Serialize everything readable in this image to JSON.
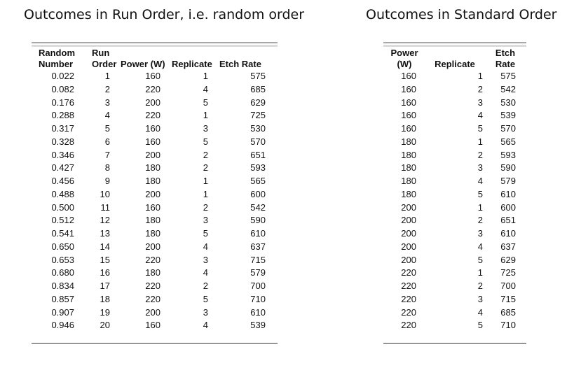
{
  "headings": {
    "left": "Outcomes in Run Order, i.e. random order",
    "right": "Outcomes in Standard Order"
  },
  "run_table": {
    "headers": [
      [
        "Random",
        "Number"
      ],
      [
        "Run",
        "Order"
      ],
      [
        "",
        "Power (W)"
      ],
      [
        "",
        "Replicate"
      ],
      [
        "",
        "Etch Rate"
      ]
    ],
    "rows": [
      [
        "0.022",
        "1",
        "160",
        "1",
        "575"
      ],
      [
        "0.082",
        "2",
        "220",
        "4",
        "685"
      ],
      [
        "0.176",
        "3",
        "200",
        "5",
        "629"
      ],
      [
        "0.288",
        "4",
        "220",
        "1",
        "725"
      ],
      [
        "0.317",
        "5",
        "160",
        "3",
        "530"
      ],
      [
        "0.328",
        "6",
        "160",
        "5",
        "570"
      ],
      [
        "0.346",
        "7",
        "200",
        "2",
        "651"
      ],
      [
        "0.427",
        "8",
        "180",
        "2",
        "593"
      ],
      [
        "0.456",
        "9",
        "180",
        "1",
        "565"
      ],
      [
        "0.488",
        "10",
        "200",
        "1",
        "600"
      ],
      [
        "0.500",
        "11",
        "160",
        "2",
        "542"
      ],
      [
        "0.512",
        "12",
        "180",
        "3",
        "590"
      ],
      [
        "0.541",
        "13",
        "180",
        "5",
        "610"
      ],
      [
        "0.650",
        "14",
        "200",
        "4",
        "637"
      ],
      [
        "0.653",
        "15",
        "220",
        "3",
        "715"
      ],
      [
        "0.680",
        "16",
        "180",
        "4",
        "579"
      ],
      [
        "0.834",
        "17",
        "220",
        "2",
        "700"
      ],
      [
        "0.857",
        "18",
        "220",
        "5",
        "710"
      ],
      [
        "0.907",
        "19",
        "200",
        "3",
        "610"
      ],
      [
        "0.946",
        "20",
        "160",
        "4",
        "539"
      ]
    ]
  },
  "std_table": {
    "headers": [
      [
        "Power",
        "(W)"
      ],
      [
        "",
        "Replicate"
      ],
      [
        "Etch",
        "Rate"
      ]
    ],
    "rows": [
      [
        "160",
        "1",
        "575"
      ],
      [
        "160",
        "2",
        "542"
      ],
      [
        "160",
        "3",
        "530"
      ],
      [
        "160",
        "4",
        "539"
      ],
      [
        "160",
        "5",
        "570"
      ],
      [
        "180",
        "1",
        "565"
      ],
      [
        "180",
        "2",
        "593"
      ],
      [
        "180",
        "3",
        "590"
      ],
      [
        "180",
        "4",
        "579"
      ],
      [
        "180",
        "5",
        "610"
      ],
      [
        "200",
        "1",
        "600"
      ],
      [
        "200",
        "2",
        "651"
      ],
      [
        "200",
        "3",
        "610"
      ],
      [
        "200",
        "4",
        "637"
      ],
      [
        "200",
        "5",
        "629"
      ],
      [
        "220",
        "1",
        "725"
      ],
      [
        "220",
        "2",
        "700"
      ],
      [
        "220",
        "3",
        "715"
      ],
      [
        "220",
        "4",
        "685"
      ],
      [
        "220",
        "5",
        "710"
      ]
    ]
  }
}
